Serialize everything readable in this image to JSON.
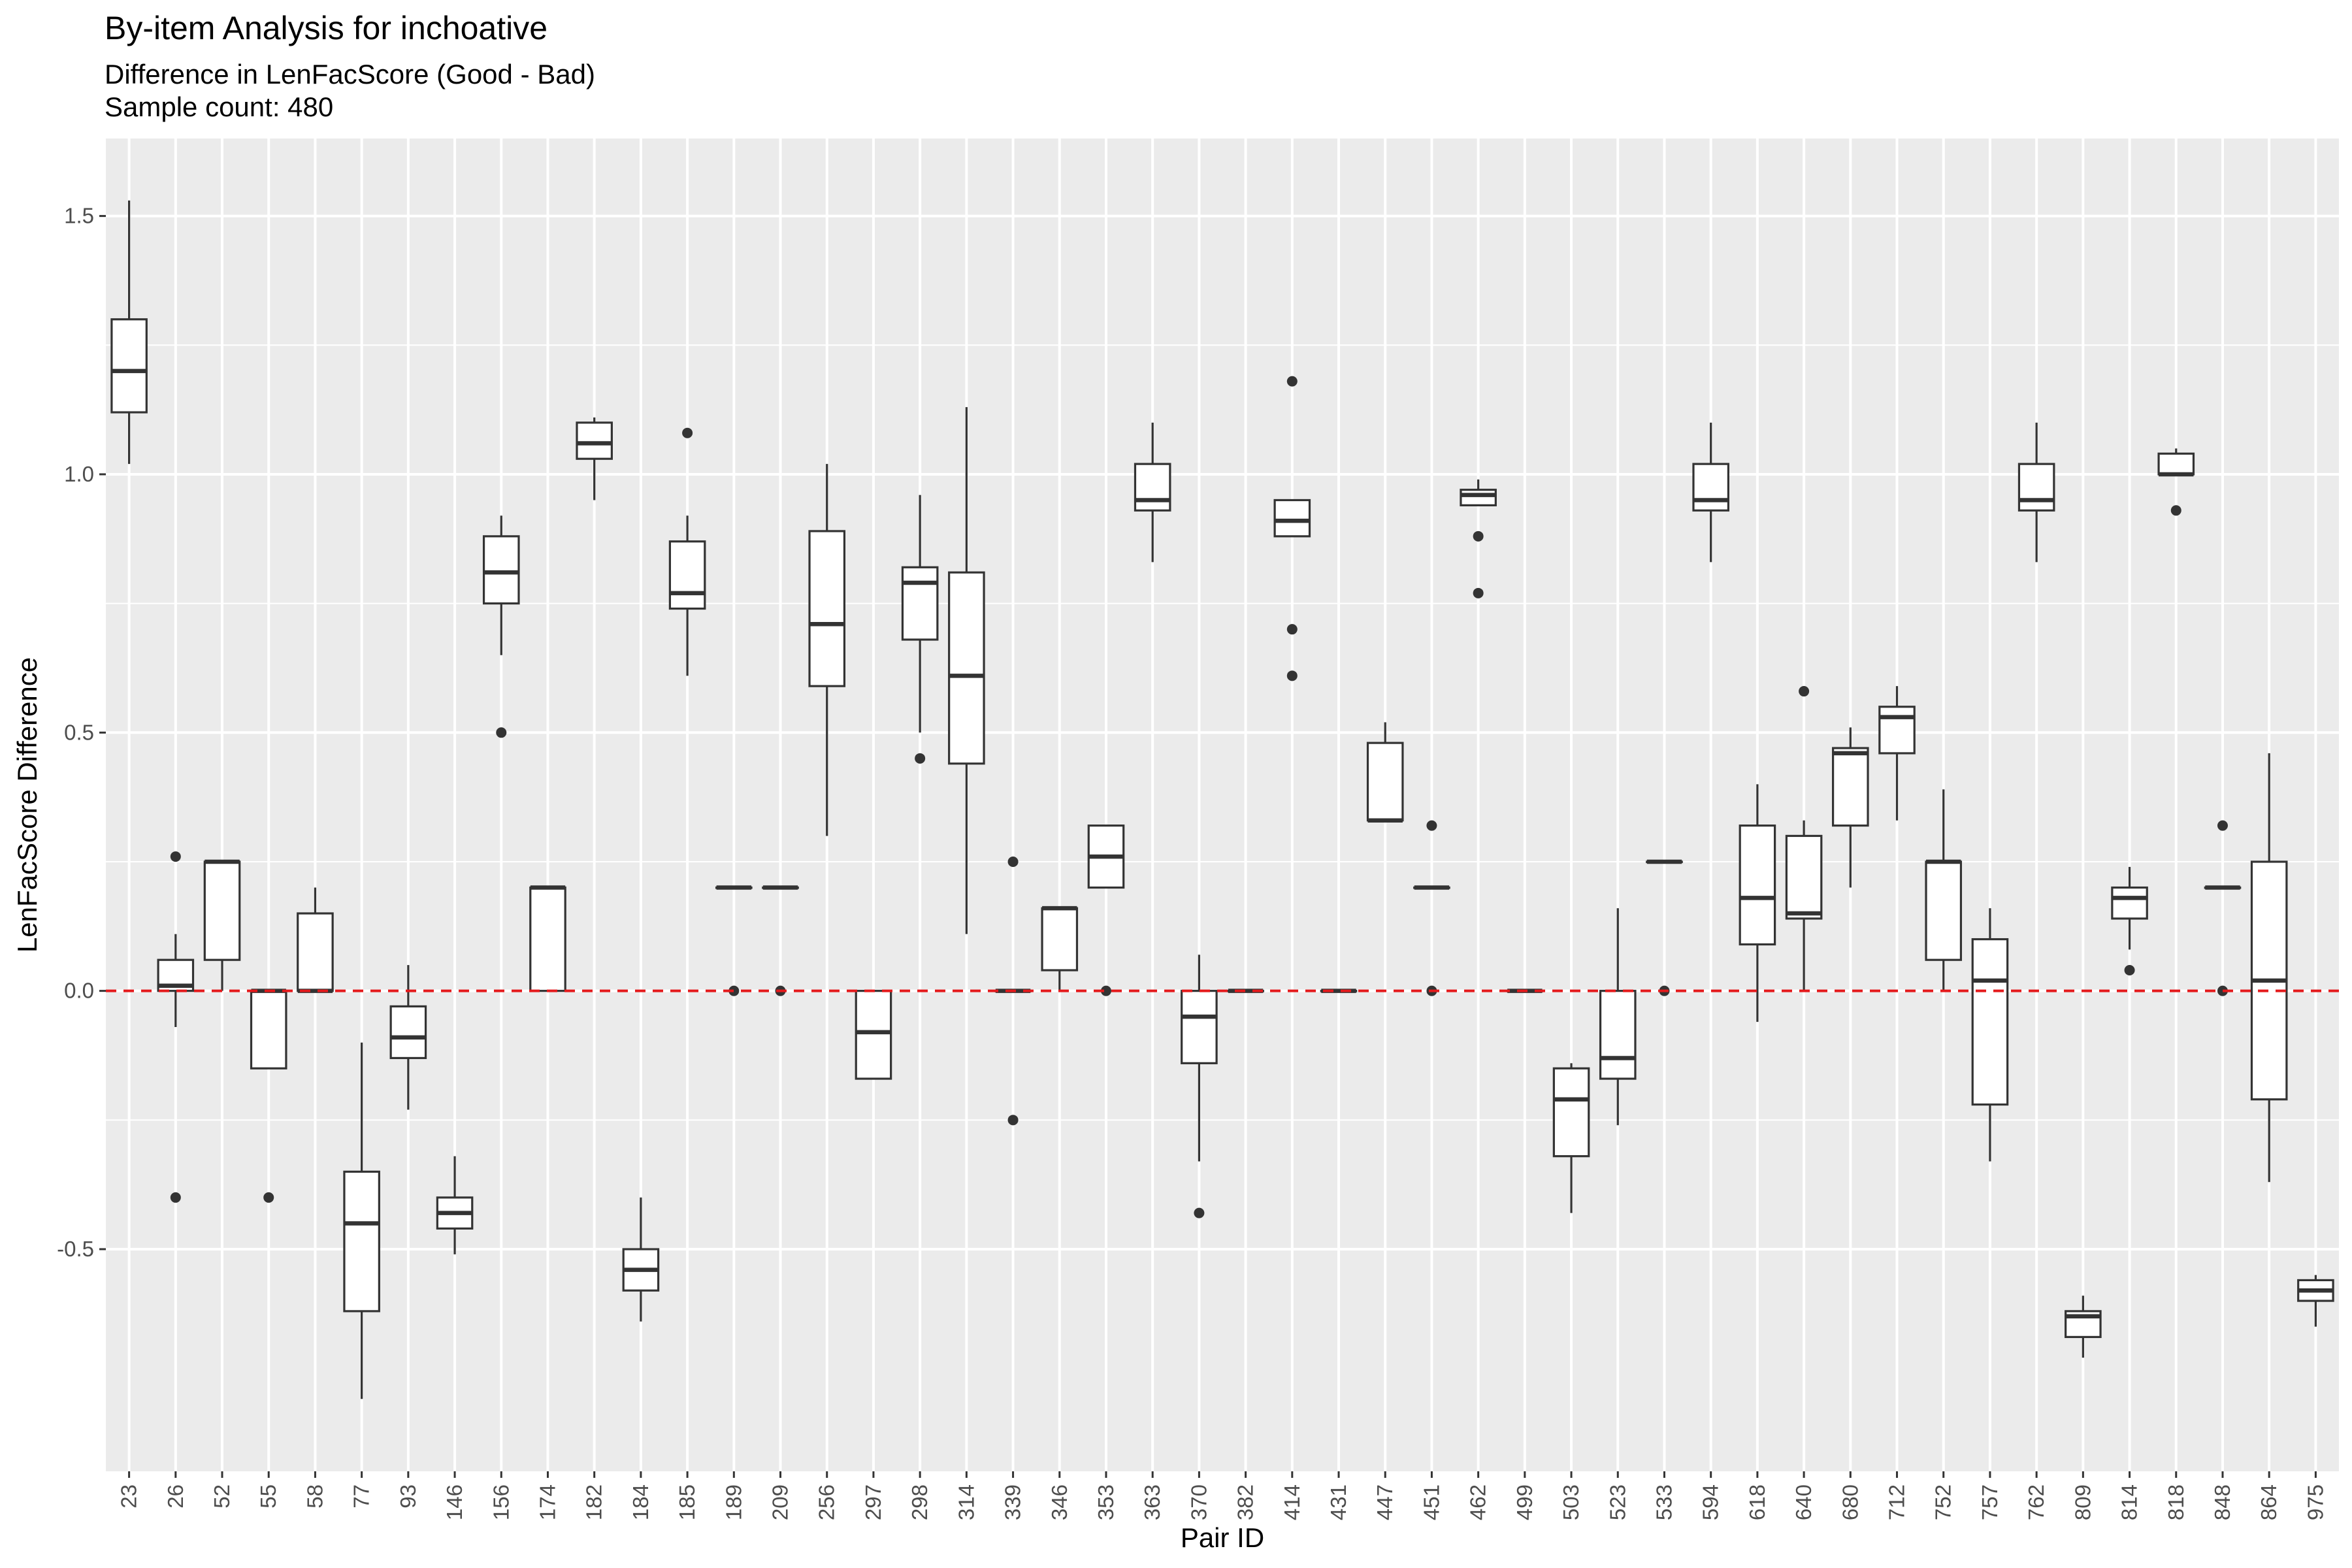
{
  "chart_data": {
    "type": "boxplot",
    "title": "By-item Analysis for inchoative",
    "subtitle_lines": [
      "Difference in LenFacScore (Good - Bad)",
      "Sample count: 480"
    ],
    "xlabel": "Pair ID",
    "ylabel": "LenFacScore Difference",
    "ylim": [
      -0.93,
      1.65
    ],
    "yticks": [
      -0.5,
      0.0,
      0.5,
      1.0,
      1.5
    ],
    "ytick_labels": [
      "-0.5",
      "0.0",
      "0.5",
      "1.0",
      "1.5"
    ],
    "grid": true,
    "reference_line": {
      "y": 0,
      "color": "#e41a1c",
      "style": "dashed"
    },
    "colors": {
      "panel": "#ebebeb",
      "grid": "#ffffff",
      "box_fill": "#ffffff",
      "box_stroke": "#333333",
      "reference": "#e41a1c"
    },
    "categories": [
      "23",
      "26",
      "52",
      "55",
      "58",
      "77",
      "93",
      "146",
      "156",
      "174",
      "182",
      "184",
      "185",
      "189",
      "209",
      "256",
      "297",
      "298",
      "314",
      "339",
      "346",
      "353",
      "363",
      "370",
      "382",
      "414",
      "431",
      "447",
      "451",
      "462",
      "499",
      "503",
      "523",
      "533",
      "594",
      "618",
      "640",
      "680",
      "712",
      "752",
      "757",
      "762",
      "809",
      "814",
      "818",
      "848",
      "864",
      "975"
    ],
    "boxes": [
      {
        "min": 1.02,
        "q1": 1.12,
        "median": 1.2,
        "q3": 1.3,
        "max": 1.53,
        "outliers": []
      },
      {
        "min": -0.07,
        "q1": 0.0,
        "median": 0.01,
        "q3": 0.06,
        "max": 0.11,
        "outliers": [
          0.26,
          -0.4
        ]
      },
      {
        "min": 0.0,
        "q1": 0.06,
        "median": 0.25,
        "q3": 0.25,
        "max": 0.25,
        "outliers": []
      },
      {
        "min": -0.15,
        "q1": -0.15,
        "median": 0.0,
        "q3": 0.0,
        "max": 0.0,
        "outliers": [
          -0.4
        ]
      },
      {
        "min": 0.0,
        "q1": 0.0,
        "median": 0.0,
        "q3": 0.15,
        "max": 0.2,
        "outliers": []
      },
      {
        "min": -0.79,
        "q1": -0.62,
        "median": -0.45,
        "q3": -0.35,
        "max": -0.1,
        "outliers": []
      },
      {
        "min": -0.23,
        "q1": -0.13,
        "median": -0.09,
        "q3": -0.03,
        "max": 0.05,
        "outliers": []
      },
      {
        "min": -0.51,
        "q1": -0.46,
        "median": -0.43,
        "q3": -0.4,
        "max": -0.32,
        "outliers": []
      },
      {
        "min": 0.65,
        "q1": 0.75,
        "median": 0.81,
        "q3": 0.88,
        "max": 0.92,
        "outliers": [
          0.5
        ]
      },
      {
        "min": 0.0,
        "q1": 0.0,
        "median": 0.2,
        "q3": 0.2,
        "max": 0.2,
        "outliers": []
      },
      {
        "min": 0.95,
        "q1": 1.03,
        "median": 1.06,
        "q3": 1.1,
        "max": 1.11,
        "outliers": []
      },
      {
        "min": -0.64,
        "q1": -0.58,
        "median": -0.54,
        "q3": -0.5,
        "max": -0.4,
        "outliers": []
      },
      {
        "min": 0.61,
        "q1": 0.74,
        "median": 0.77,
        "q3": 0.87,
        "max": 0.92,
        "outliers": [
          1.08
        ]
      },
      {
        "min": 0.2,
        "q1": 0.2,
        "median": 0.2,
        "q3": 0.2,
        "max": 0.2,
        "outliers": [
          0.0
        ]
      },
      {
        "min": 0.2,
        "q1": 0.2,
        "median": 0.2,
        "q3": 0.2,
        "max": 0.2,
        "outliers": [
          0.0
        ]
      },
      {
        "min": 0.3,
        "q1": 0.59,
        "median": 0.71,
        "q3": 0.89,
        "max": 1.02,
        "outliers": []
      },
      {
        "min": -0.17,
        "q1": -0.17,
        "median": -0.08,
        "q3": 0.0,
        "max": 0.0,
        "outliers": []
      },
      {
        "min": 0.5,
        "q1": 0.68,
        "median": 0.79,
        "q3": 0.82,
        "max": 0.96,
        "outliers": [
          0.45
        ]
      },
      {
        "min": 0.11,
        "q1": 0.44,
        "median": 0.61,
        "q3": 0.81,
        "max": 1.13,
        "outliers": []
      },
      {
        "min": 0.0,
        "q1": 0.0,
        "median": 0.0,
        "q3": 0.0,
        "max": 0.0,
        "outliers": [
          0.25,
          -0.25
        ]
      },
      {
        "min": 0.0,
        "q1": 0.04,
        "median": 0.16,
        "q3": 0.16,
        "max": 0.16,
        "outliers": []
      },
      {
        "min": 0.2,
        "q1": 0.2,
        "median": 0.26,
        "q3": 0.32,
        "max": 0.32,
        "outliers": [
          0.0
        ]
      },
      {
        "min": 0.83,
        "q1": 0.93,
        "median": 0.95,
        "q3": 1.02,
        "max": 1.1,
        "outliers": []
      },
      {
        "min": -0.33,
        "q1": -0.14,
        "median": -0.05,
        "q3": 0.0,
        "max": 0.07,
        "outliers": [
          -0.43
        ]
      },
      {
        "min": 0.0,
        "q1": 0.0,
        "median": 0.0,
        "q3": 0.0,
        "max": 0.0,
        "outliers": []
      },
      {
        "min": 0.88,
        "q1": 0.88,
        "median": 0.91,
        "q3": 0.95,
        "max": 0.95,
        "outliers": [
          1.18,
          0.7,
          0.61
        ]
      },
      {
        "min": 0.0,
        "q1": 0.0,
        "median": 0.0,
        "q3": 0.0,
        "max": 0.0,
        "outliers": []
      },
      {
        "min": 0.33,
        "q1": 0.33,
        "median": 0.33,
        "q3": 0.48,
        "max": 0.52,
        "outliers": []
      },
      {
        "min": 0.2,
        "q1": 0.2,
        "median": 0.2,
        "q3": 0.2,
        "max": 0.2,
        "outliers": [
          0.32,
          0.0
        ]
      },
      {
        "min": 0.94,
        "q1": 0.94,
        "median": 0.96,
        "q3": 0.97,
        "max": 0.99,
        "outliers": [
          0.88,
          0.77
        ]
      },
      {
        "min": 0.0,
        "q1": 0.0,
        "median": 0.0,
        "q3": 0.0,
        "max": 0.0,
        "outliers": []
      },
      {
        "min": -0.43,
        "q1": -0.32,
        "median": -0.21,
        "q3": -0.15,
        "max": -0.14,
        "outliers": []
      },
      {
        "min": -0.26,
        "q1": -0.17,
        "median": -0.13,
        "q3": 0.0,
        "max": 0.16,
        "outliers": []
      },
      {
        "min": 0.25,
        "q1": 0.25,
        "median": 0.25,
        "q3": 0.25,
        "max": 0.25,
        "outliers": [
          0.0
        ]
      },
      {
        "min": 0.83,
        "q1": 0.93,
        "median": 0.95,
        "q3": 1.02,
        "max": 1.1,
        "outliers": []
      },
      {
        "min": -0.06,
        "q1": 0.09,
        "median": 0.18,
        "q3": 0.32,
        "max": 0.4,
        "outliers": []
      },
      {
        "min": 0.0,
        "q1": 0.14,
        "median": 0.15,
        "q3": 0.3,
        "max": 0.33,
        "outliers": [
          0.58
        ]
      },
      {
        "min": 0.2,
        "q1": 0.32,
        "median": 0.46,
        "q3": 0.47,
        "max": 0.51,
        "outliers": []
      },
      {
        "min": 0.33,
        "q1": 0.46,
        "median": 0.53,
        "q3": 0.55,
        "max": 0.59,
        "outliers": []
      },
      {
        "min": 0.0,
        "q1": 0.06,
        "median": 0.25,
        "q3": 0.25,
        "max": 0.39,
        "outliers": []
      },
      {
        "min": -0.33,
        "q1": -0.22,
        "median": 0.02,
        "q3": 0.1,
        "max": 0.16,
        "outliers": []
      },
      {
        "min": 0.83,
        "q1": 0.93,
        "median": 0.95,
        "q3": 1.02,
        "max": 1.1,
        "outliers": []
      },
      {
        "min": -0.71,
        "q1": -0.67,
        "median": -0.63,
        "q3": -0.62,
        "max": -0.59,
        "outliers": []
      },
      {
        "min": 0.08,
        "q1": 0.14,
        "median": 0.18,
        "q3": 0.2,
        "max": 0.24,
        "outliers": [
          0.04
        ]
      },
      {
        "min": 1.0,
        "q1": 1.0,
        "median": 1.0,
        "q3": 1.04,
        "max": 1.05,
        "outliers": [
          0.93
        ]
      },
      {
        "min": 0.2,
        "q1": 0.2,
        "median": 0.2,
        "q3": 0.2,
        "max": 0.2,
        "outliers": [
          0.32,
          0.0
        ]
      },
      {
        "min": -0.37,
        "q1": -0.21,
        "median": 0.02,
        "q3": 0.25,
        "max": 0.46,
        "outliers": []
      },
      {
        "min": -0.65,
        "q1": -0.6,
        "median": -0.58,
        "q3": -0.56,
        "max": -0.55,
        "outliers": []
      }
    ]
  }
}
